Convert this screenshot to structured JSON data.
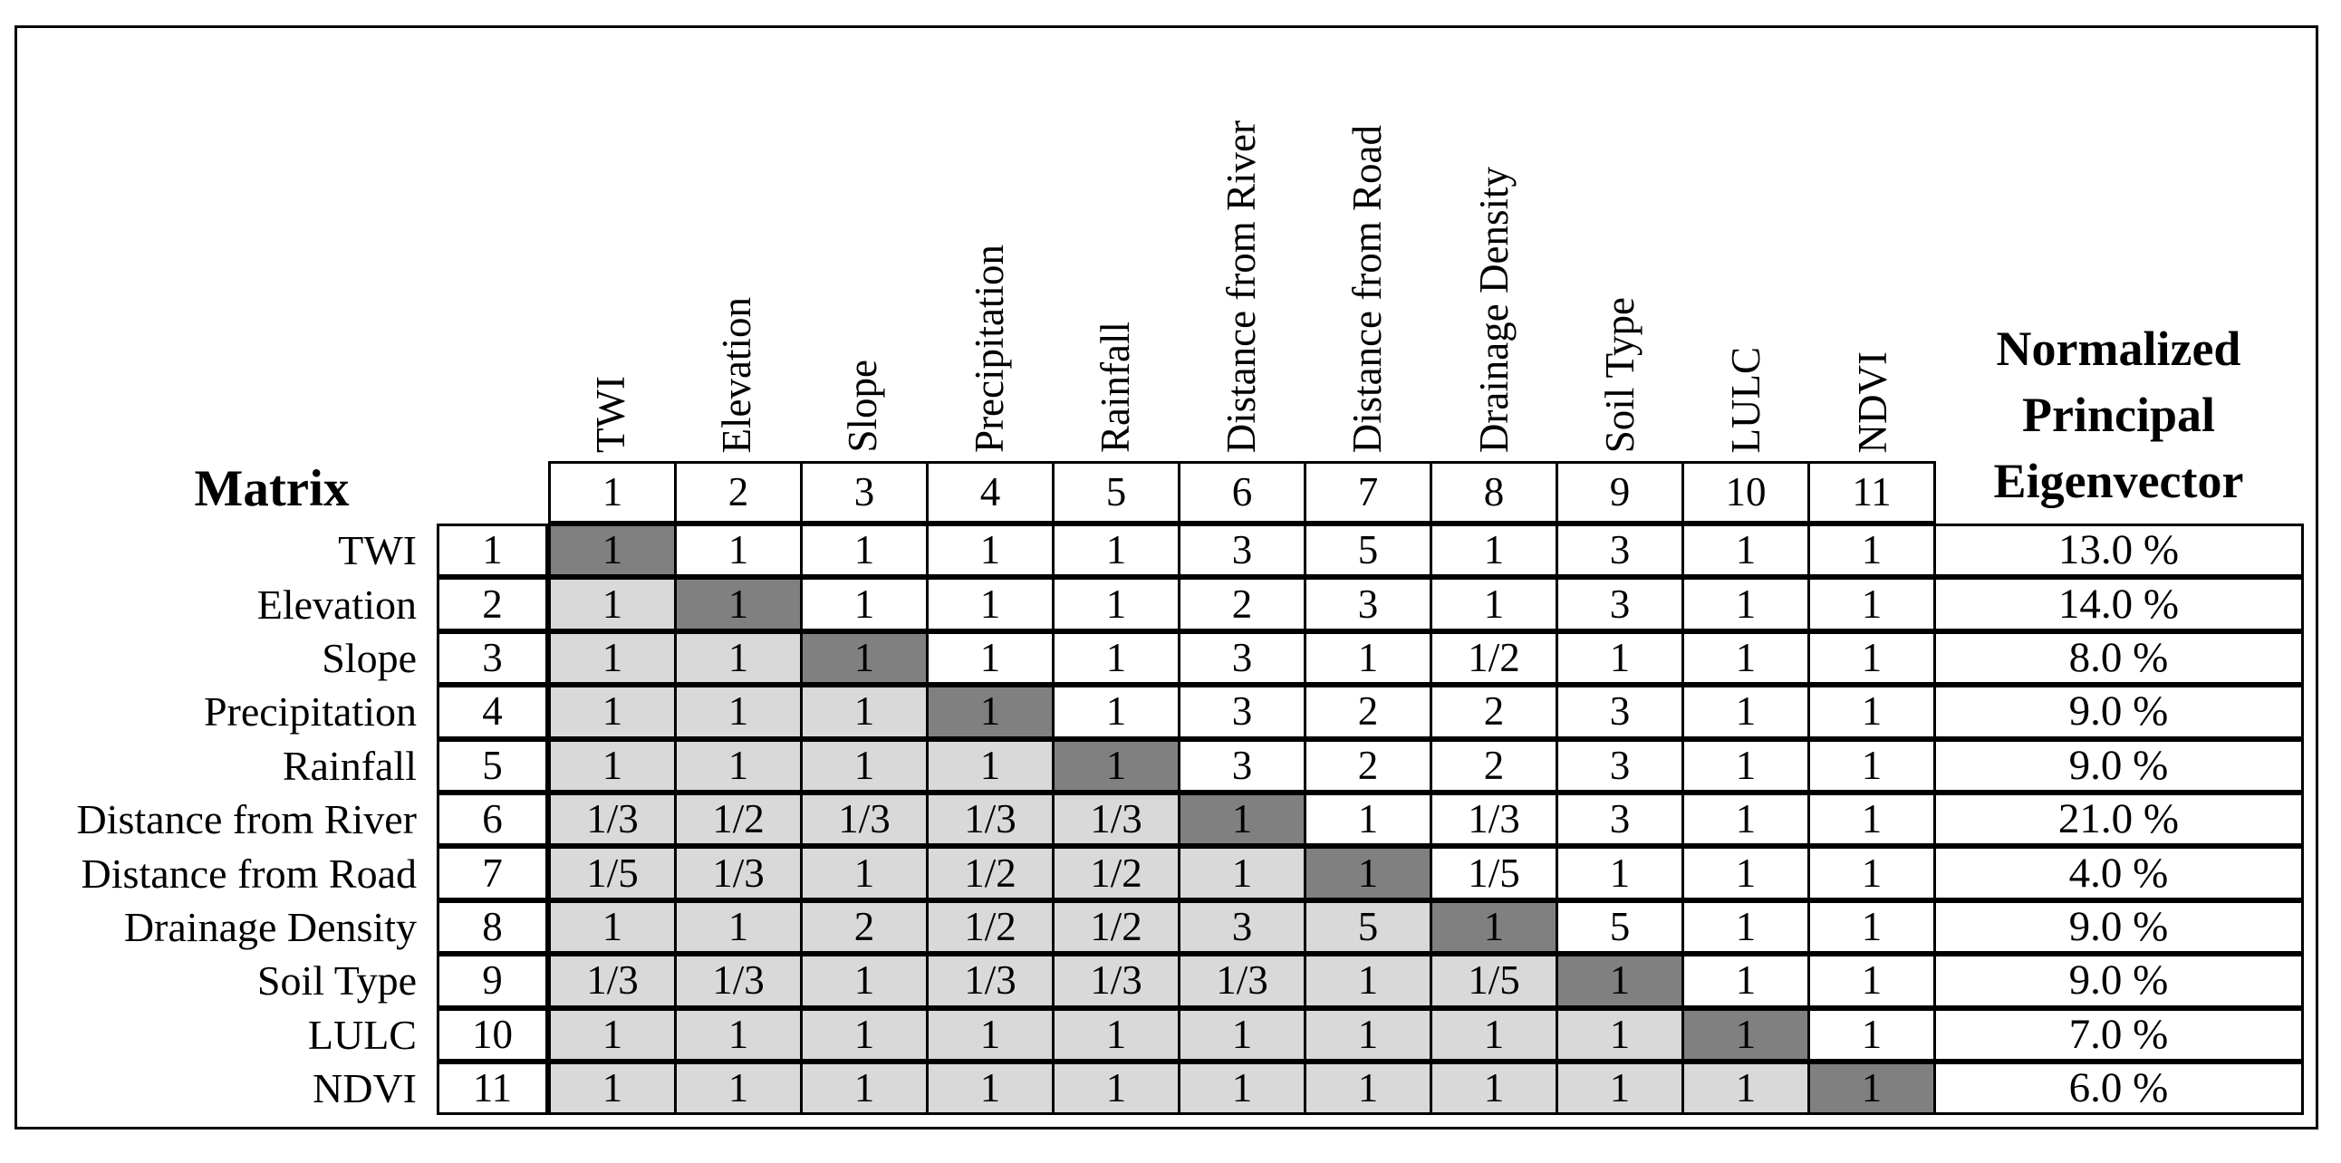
{
  "matrix": {
    "corner_label": "Matrix",
    "eigenvector_header": "Normalized\nPrincipal\nEigenvector",
    "column_factor_labels": [
      "TWI",
      "Elevation",
      "Slope",
      "Precipitation",
      "Rainfall",
      "Distance from River",
      "Distance from Road",
      "Drainage Density",
      "Soil Type",
      "LULC",
      "NDVI"
    ],
    "column_numbers": [
      "1",
      "2",
      "3",
      "4",
      "5",
      "6",
      "7",
      "8",
      "9",
      "10",
      "11"
    ],
    "rows": [
      {
        "label": "TWI",
        "number": "1",
        "values": [
          "1",
          "1",
          "1",
          "1",
          "1",
          "3",
          "5",
          "1",
          "3",
          "1",
          "1"
        ],
        "eigenvector": "13.0 %"
      },
      {
        "label": "Elevation",
        "number": "2",
        "values": [
          "1",
          "1",
          "1",
          "1",
          "1",
          "2",
          "3",
          "1",
          "3",
          "1",
          "1"
        ],
        "eigenvector": "14.0 %"
      },
      {
        "label": "Slope",
        "number": "3",
        "values": [
          "1",
          "1",
          "1",
          "1",
          "1",
          "3",
          "1",
          "1/2",
          "1",
          "1",
          "1"
        ],
        "eigenvector": "8.0 %"
      },
      {
        "label": "Precipitation",
        "number": "4",
        "values": [
          "1",
          "1",
          "1",
          "1",
          "1",
          "3",
          "2",
          "2",
          "3",
          "1",
          "1"
        ],
        "eigenvector": "9.0 %"
      },
      {
        "label": "Rainfall",
        "number": "5",
        "values": [
          "1",
          "1",
          "1",
          "1",
          "1",
          "3",
          "2",
          "2",
          "3",
          "1",
          "1"
        ],
        "eigenvector": "9.0 %"
      },
      {
        "label": "Distance from River",
        "number": "6",
        "values": [
          "1/3",
          "1/2",
          "1/3",
          "1/3",
          "1/3",
          "1",
          "1",
          "1/3",
          "3",
          "1",
          "1"
        ],
        "eigenvector": "21.0 %"
      },
      {
        "label": "Distance from Road",
        "number": "7",
        "values": [
          "1/5",
          "1/3",
          "1",
          "1/2",
          "1/2",
          "1",
          "1",
          "1/5",
          "1",
          "1",
          "1"
        ],
        "eigenvector": "4.0 %"
      },
      {
        "label": "Drainage Density",
        "number": "8",
        "values": [
          "1",
          "1",
          "2",
          "1/2",
          "1/2",
          "3",
          "5",
          "1",
          "5",
          "1",
          "1"
        ],
        "eigenvector": "9.0 %"
      },
      {
        "label": "Soil Type",
        "number": "9",
        "values": [
          "1/3",
          "1/3",
          "1",
          "1/3",
          "1/3",
          "1/3",
          "1",
          "1/5",
          "1",
          "1",
          "1"
        ],
        "eigenvector": "9.0 %"
      },
      {
        "label": "LULC",
        "number": "10",
        "values": [
          "1",
          "1",
          "1",
          "1",
          "1",
          "1",
          "1",
          "1",
          "1",
          "1",
          "1"
        ],
        "eigenvector": "7.0 %"
      },
      {
        "label": "NDVI",
        "number": "11",
        "values": [
          "1",
          "1",
          "1",
          "1",
          "1",
          "1",
          "1",
          "1",
          "1",
          "1",
          "1"
        ],
        "eigenvector": "6.0 %"
      }
    ]
  },
  "colors": {
    "diagonal_fill": "#808080",
    "lower_triangle_fill": "#d9d9d9",
    "upper_triangle_fill": "#ffffff",
    "grid_line": "#000000"
  }
}
